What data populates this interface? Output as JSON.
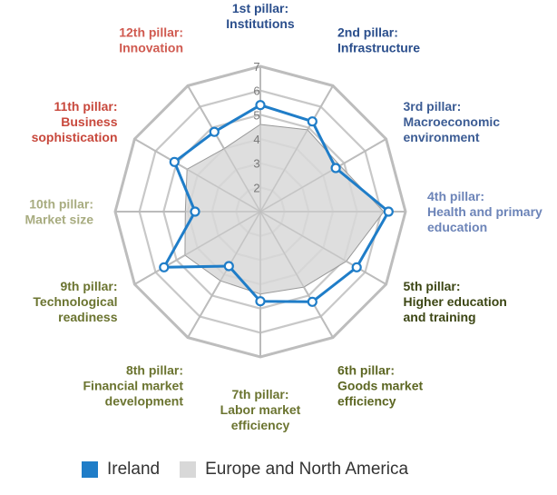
{
  "chart_data": {
    "type": "radar",
    "axes": [
      {
        "label_lines": [
          "1st pillar:",
          "Institutions"
        ],
        "color": "#2A4E8C"
      },
      {
        "label_lines": [
          "2nd pillar:",
          "Infrastructure"
        ],
        "color": "#2A4E8C"
      },
      {
        "label_lines": [
          "3rd pillar:",
          "Macroeconomic",
          "environment"
        ],
        "color": "#3C5C94"
      },
      {
        "label_lines": [
          "4th pillar:",
          "Health and primary",
          "education"
        ],
        "color": "#6C84B8"
      },
      {
        "label_lines": [
          "5th pillar:",
          "Higher education",
          "and training"
        ],
        "color": "#3C4614"
      },
      {
        "label_lines": [
          "6th pillar:",
          "Goods market",
          "efficiency"
        ],
        "color": "#5C6622"
      },
      {
        "label_lines": [
          "7th pillar:",
          "Labor market",
          "efficiency"
        ],
        "color": "#6B7430"
      },
      {
        "label_lines": [
          "8th pillar:",
          "Financial market",
          "development"
        ],
        "color": "#6B7430"
      },
      {
        "label_lines": [
          "9th pillar:",
          "Technological",
          "readiness"
        ],
        "color": "#6B7430"
      },
      {
        "label_lines": [
          "10th pillar:",
          "Market size"
        ],
        "color": "#A8AC80"
      },
      {
        "label_lines": [
          "11th pillar:",
          "Business",
          "sophistication"
        ],
        "color": "#C8483C"
      },
      {
        "label_lines": [
          "12th pillar:",
          "Innovation"
        ],
        "color": "#D05A50"
      }
    ],
    "ticks": [
      2,
      3,
      4,
      5,
      6,
      7
    ],
    "range": [
      1,
      7
    ],
    "series": [
      {
        "name": "Ireland",
        "color": "#1F7DC8",
        "values": [
          5.4,
          5.3,
          4.6,
          6.3,
          5.6,
          5.3,
          4.7,
          3.6,
          5.6,
          3.7,
          5.1,
          4.8
        ]
      },
      {
        "name": "Europe and North America",
        "color": "#D8D8D8",
        "values": [
          4.6,
          4.9,
          4.8,
          6.1,
          5.1,
          4.6,
          4.4,
          4.3,
          4.6,
          4.1,
          4.5,
          4.0
        ]
      }
    ]
  },
  "legend": {
    "ireland": "Ireland",
    "europe": "Europe and North America"
  }
}
